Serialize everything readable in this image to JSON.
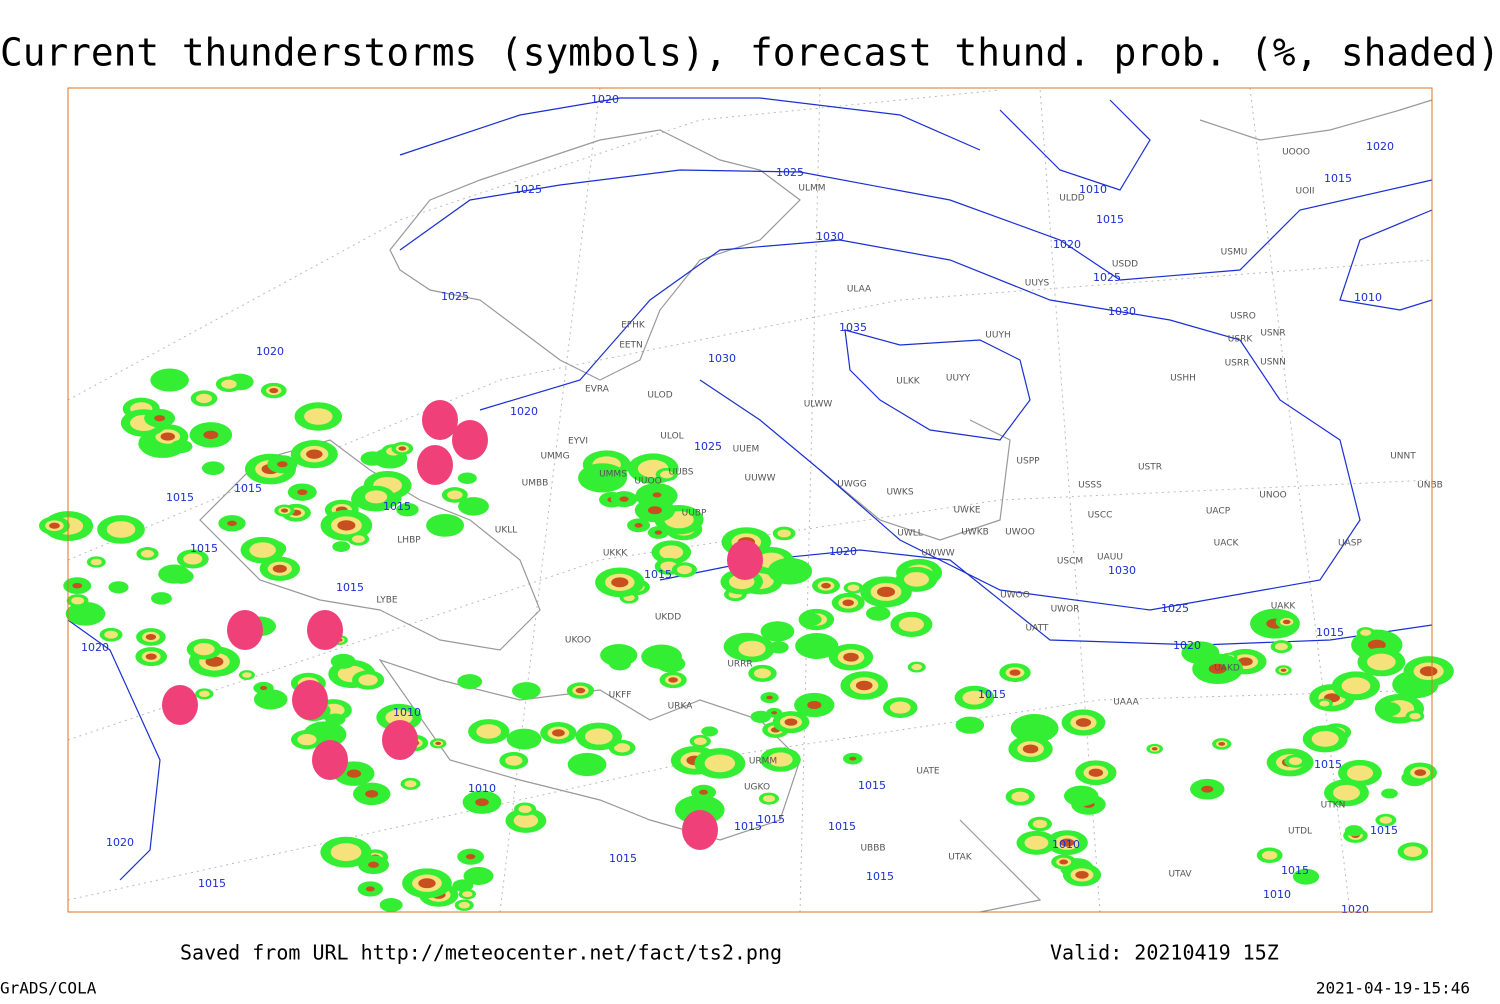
{
  "header": {
    "title": "Current thunderstorms (symbols), forecast thund. prob. (%, shaded)"
  },
  "map": {
    "isobar_labels": [
      1020,
      1025,
      1025,
      1030,
      1025,
      1020,
      1020,
      1025,
      1030,
      1035,
      1010,
      1015,
      1020,
      1025,
      1030,
      1010,
      1015,
      1020,
      1015,
      1015,
      1015,
      1015,
      1015,
      1020,
      1020,
      1015,
      1010,
      1010,
      1015,
      1020,
      1030,
      1025,
      1020,
      1015,
      1015,
      1015,
      1015,
      1010,
      1010,
      1015,
      1020,
      1015,
      1015,
      1015,
      1015,
      1015,
      1015
    ],
    "station_labels": [
      "ULMM",
      "ULDD",
      "UUYS",
      "ULAA",
      "UUYH",
      "ULKK",
      "UUYY",
      "ULWW",
      "UUEM",
      "UUWW",
      "UWGG",
      "UWKS",
      "UWKE",
      "UWKB",
      "UWOO",
      "UWLL",
      "UWWW",
      "USPP",
      "USSS",
      "USTR",
      "USCC",
      "USCM",
      "UAUU",
      "UWOO",
      "UWOR",
      "UATT",
      "UACP",
      "UACK",
      "UNOO",
      "USDD",
      "USMU",
      "USRO",
      "USRK",
      "USNR",
      "USRR",
      "USNN",
      "USHH",
      "UOOO",
      "UOII",
      "UNNT",
      "UNBB",
      "UASP",
      "EFHK",
      "EETN",
      "EVRA",
      "ULOD",
      "ULOL",
      "EYVI",
      "UMMG",
      "UMBB",
      "UMMS",
      "UUOO",
      "UUBS",
      "UUBP",
      "UKKK",
      "UKLL",
      "LHBP",
      "LYBE",
      "UKOO",
      "UKDD",
      "UKFF",
      "URKA",
      "URRR",
      "UAKK",
      "UAKD",
      "UTAK",
      "UTAV",
      "UBBB",
      "UGKO",
      "URMM",
      "UATE",
      "UTDL",
      "UTKN",
      "UAAA"
    ]
  },
  "footer": {
    "source": "Saved from URL http://meteocenter.net/fact/ts2.png",
    "valid": "Valid: 20210419 15Z",
    "software": "GrADS/COLA",
    "timestamp": "2021-04-19-15:46"
  }
}
